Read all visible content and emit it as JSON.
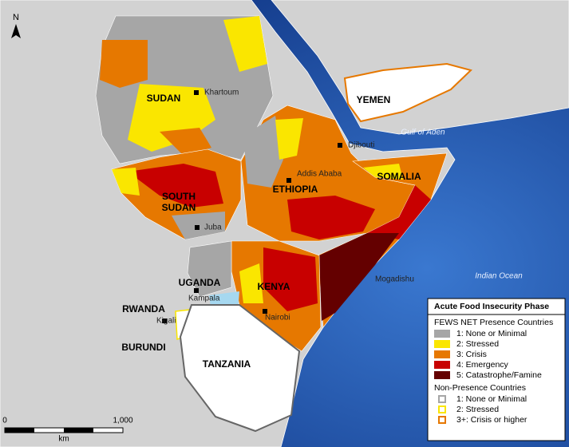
{
  "north_arrow": "N",
  "countries": [
    {
      "lines": [
        "SUDAN"
      ]
    },
    {
      "lines": [
        "SOUTH",
        "SUDAN"
      ]
    },
    {
      "lines": [
        "ETHIOPIA"
      ]
    },
    {
      "lines": [
        "SOMALIA"
      ]
    },
    {
      "lines": [
        "YEMEN"
      ]
    },
    {
      "lines": [
        "UGANDA"
      ]
    },
    {
      "lines": [
        "KENYA"
      ]
    },
    {
      "lines": [
        "RWANDA"
      ]
    },
    {
      "lines": [
        "BURUNDI"
      ]
    },
    {
      "lines": [
        "TANZANIA"
      ]
    }
  ],
  "cities": [
    "Khartoum",
    "Djibouti",
    "Addis Ababa",
    "Juba",
    "Kampala",
    "Kigali",
    "Nairobi",
    "Mogadishu"
  ],
  "water": [
    "Gulf of Aden",
    "Indian Ocean"
  ],
  "legend": {
    "title": "Acute Food Insecurity Phase",
    "presence": {
      "heading": "FEWS NET Presence Countries",
      "items": [
        {
          "label": "1: None or Minimal",
          "color": "#a6a6a6"
        },
        {
          "label": "2: Stressed",
          "color": "#fae600"
        },
        {
          "label": "3: Crisis",
          "color": "#e67800"
        },
        {
          "label": "4: Emergency",
          "color": "#c80000"
        },
        {
          "label": "5: Catastrophe/Famine",
          "color": "#640000"
        }
      ]
    },
    "non_presence": {
      "heading": "Non-Presence Countries",
      "items": [
        {
          "label": "1: None or Minimal",
          "color": "#a6a6a6"
        },
        {
          "label": "2: Stressed",
          "color": "#fae600"
        },
        {
          "label": "3+: Crisis or higher",
          "color": "#e67800"
        }
      ]
    }
  },
  "scale": {
    "start": "0",
    "end": "1,000",
    "unit": "km"
  }
}
